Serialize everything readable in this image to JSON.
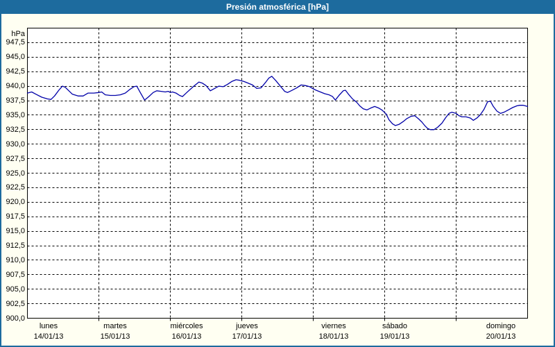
{
  "window": {
    "title": "Presión atmosférica [hPa]"
  },
  "colors": {
    "accent_blue": "#1d6b9e",
    "line_blue": "#0000a8",
    "plot_background": "#ffffff",
    "outer_background": "#fffff2",
    "grid_black": "#000000"
  },
  "chart_data": {
    "type": "line",
    "title": "Presión atmosférica [hPa]",
    "ylabel": "hPa",
    "ylim": [
      900,
      950
    ],
    "y_tick_step": 2.5,
    "y_tick_labels": [
      "947,5",
      "945,0",
      "942,5",
      "940,0",
      "937,5",
      "935,0",
      "932,5",
      "930,0",
      "927,5",
      "925,0",
      "922,5",
      "920,0",
      "917,5",
      "915,0",
      "912,5",
      "910,0",
      "907,5",
      "905,0",
      "902,5",
      "900,0"
    ],
    "x_range_days": [
      0,
      7
    ],
    "x_days": [
      {
        "name": "lunes",
        "date": "14/01/13"
      },
      {
        "name": "martes",
        "date": "15/01/13"
      },
      {
        "name": "miércoles",
        "date": "16/01/13"
      },
      {
        "name": "jueves",
        "date": "17/01/13"
      },
      {
        "name": "viernes",
        "date": "18/01/13"
      },
      {
        "name": "sábado",
        "date": "19/01/13"
      },
      {
        "name": "domingo",
        "date": "20/01/13"
      }
    ],
    "grid": true,
    "legend_position": "none",
    "series": [
      {
        "name": "Presión atmosférica",
        "unit": "hPa",
        "color": "#0000a8",
        "points": [
          [
            0.0,
            938.8
          ],
          [
            0.06,
            939.0
          ],
          [
            0.12,
            938.6
          ],
          [
            0.2,
            938.1
          ],
          [
            0.28,
            937.8
          ],
          [
            0.33,
            937.7
          ],
          [
            0.38,
            938.3
          ],
          [
            0.44,
            939.3
          ],
          [
            0.49,
            940.0
          ],
          [
            0.53,
            939.8
          ],
          [
            0.58,
            939.2
          ],
          [
            0.63,
            938.6
          ],
          [
            0.71,
            938.3
          ],
          [
            0.78,
            938.3
          ],
          [
            0.85,
            938.8
          ],
          [
            0.93,
            938.8
          ],
          [
            1.0,
            938.9
          ],
          [
            1.04,
            939.0
          ],
          [
            1.09,
            938.5
          ],
          [
            1.16,
            938.4
          ],
          [
            1.23,
            938.4
          ],
          [
            1.3,
            938.5
          ],
          [
            1.37,
            938.8
          ],
          [
            1.43,
            939.4
          ],
          [
            1.49,
            939.9
          ],
          [
            1.53,
            940.0
          ],
          [
            1.58,
            938.9
          ],
          [
            1.64,
            937.6
          ],
          [
            1.7,
            938.2
          ],
          [
            1.76,
            938.9
          ],
          [
            1.81,
            939.2
          ],
          [
            1.87,
            939.1
          ],
          [
            1.93,
            939.0
          ],
          [
            1.97,
            939.1
          ],
          [
            2.0,
            938.9
          ],
          [
            2.03,
            939.0
          ],
          [
            2.08,
            938.8
          ],
          [
            2.13,
            938.4
          ],
          [
            2.17,
            938.2
          ],
          [
            2.23,
            938.9
          ],
          [
            2.32,
            939.9
          ],
          [
            2.4,
            940.7
          ],
          [
            2.45,
            940.5
          ],
          [
            2.5,
            940.1
          ],
          [
            2.56,
            939.2
          ],
          [
            2.62,
            939.6
          ],
          [
            2.68,
            940.0
          ],
          [
            2.74,
            939.9
          ],
          [
            2.8,
            940.3
          ],
          [
            2.86,
            940.8
          ],
          [
            2.92,
            941.1
          ],
          [
            2.97,
            941.0
          ],
          [
            3.03,
            940.8
          ],
          [
            3.09,
            940.5
          ],
          [
            3.15,
            940.2
          ],
          [
            3.21,
            939.6
          ],
          [
            3.27,
            939.7
          ],
          [
            3.33,
            940.6
          ],
          [
            3.38,
            941.4
          ],
          [
            3.42,
            941.7
          ],
          [
            3.48,
            940.9
          ],
          [
            3.54,
            940.0
          ],
          [
            3.6,
            939.1
          ],
          [
            3.64,
            938.9
          ],
          [
            3.69,
            939.2
          ],
          [
            3.77,
            939.7
          ],
          [
            3.83,
            940.2
          ],
          [
            3.89,
            940.1
          ],
          [
            3.95,
            939.9
          ],
          [
            3.99,
            939.6
          ],
          [
            4.04,
            939.3
          ],
          [
            4.1,
            939.0
          ],
          [
            4.16,
            938.7
          ],
          [
            4.22,
            938.5
          ],
          [
            4.27,
            938.2
          ],
          [
            4.31,
            937.6
          ],
          [
            4.36,
            938.4
          ],
          [
            4.42,
            939.2
          ],
          [
            4.45,
            939.3
          ],
          [
            4.5,
            938.5
          ],
          [
            4.55,
            937.8
          ],
          [
            4.61,
            937.2
          ],
          [
            4.65,
            936.6
          ],
          [
            4.7,
            936.1
          ],
          [
            4.75,
            935.9
          ],
          [
            4.8,
            936.2
          ],
          [
            4.86,
            936.5
          ],
          [
            4.92,
            936.2
          ],
          [
            4.96,
            935.9
          ],
          [
            5.02,
            935.2
          ],
          [
            5.06,
            934.2
          ],
          [
            5.11,
            933.5
          ],
          [
            5.15,
            933.2
          ],
          [
            5.2,
            933.4
          ],
          [
            5.26,
            933.9
          ],
          [
            5.31,
            934.4
          ],
          [
            5.37,
            934.8
          ],
          [
            5.42,
            934.9
          ],
          [
            5.47,
            934.4
          ],
          [
            5.52,
            933.8
          ],
          [
            5.56,
            933.2
          ],
          [
            5.6,
            932.7
          ],
          [
            5.64,
            932.5
          ],
          [
            5.69,
            932.5
          ],
          [
            5.74,
            932.9
          ],
          [
            5.8,
            933.6
          ],
          [
            5.85,
            934.5
          ],
          [
            5.9,
            935.3
          ],
          [
            5.94,
            935.5
          ],
          [
            6.0,
            935.3
          ],
          [
            6.04,
            934.9
          ],
          [
            6.08,
            934.7
          ],
          [
            6.14,
            934.7
          ],
          [
            6.2,
            934.5
          ],
          [
            6.24,
            934.1
          ],
          [
            6.29,
            934.5
          ],
          [
            6.34,
            935.1
          ],
          [
            6.39,
            936.0
          ],
          [
            6.44,
            937.3
          ],
          [
            6.48,
            937.4
          ],
          [
            6.52,
            936.5
          ],
          [
            6.57,
            935.7
          ],
          [
            6.62,
            935.3
          ],
          [
            6.67,
            935.5
          ],
          [
            6.73,
            935.9
          ],
          [
            6.79,
            936.3
          ],
          [
            6.85,
            936.6
          ],
          [
            6.89,
            936.7
          ],
          [
            6.94,
            936.7
          ],
          [
            7.0,
            936.5
          ]
        ]
      }
    ]
  }
}
